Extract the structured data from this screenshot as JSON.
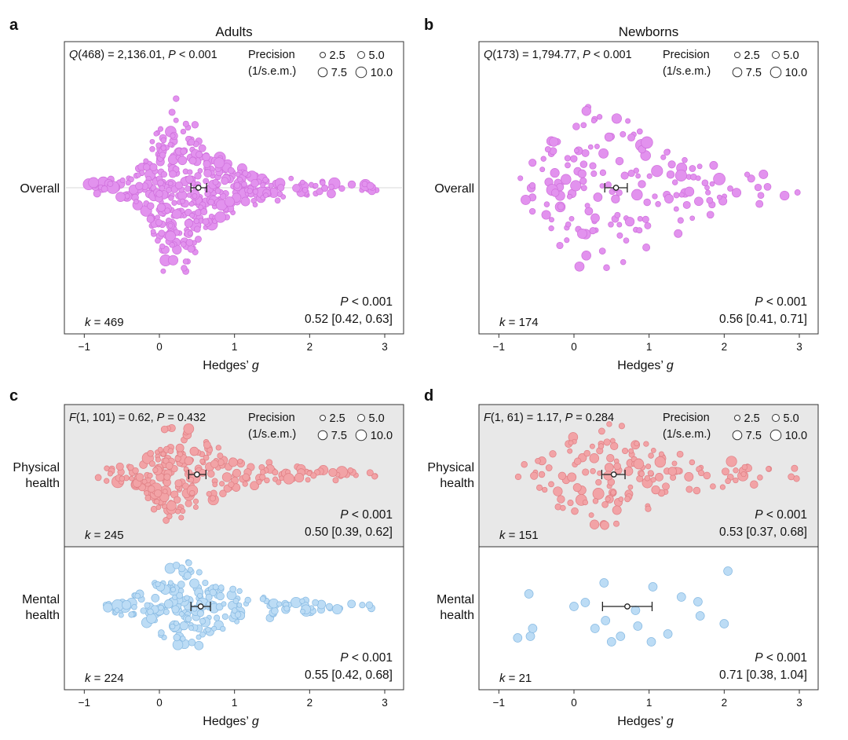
{
  "figure": {
    "panels": [
      {
        "letter": "a",
        "title": "Adults",
        "stat_prefix": "Q",
        "stat_args": "(468) = 2,136.01, ",
        "p_label": "P",
        "p_rest": " < 0.001",
        "precision_legend": {
          "title_line1": "Precision",
          "title_line2": "(1/s.e.m.)",
          "items": [
            "2.5",
            "5.0",
            "7.5",
            "10.0"
          ]
        },
        "xlabel_main": "Hedges’ ",
        "xlabel_italic": "g",
        "x_ticks": [
          "−1",
          "0",
          "1",
          "2",
          "3"
        ],
        "rows": [
          {
            "label_lines": [
              "Overall"
            ],
            "k_label": "k",
            "k_value": " = 469",
            "p_result": " < 0.001",
            "estimate": "0.52 [0.42, 0.63]"
          }
        ]
      },
      {
        "letter": "b",
        "title": "Newborns",
        "stat_prefix": "Q",
        "stat_args": "(173) = 1,794.77, ",
        "p_label": "P",
        "p_rest": " < 0.001",
        "precision_legend": {
          "title_line1": "Precision",
          "title_line2": "(1/s.e.m.)",
          "items": [
            "2.5",
            "5.0",
            "7.5",
            "10.0"
          ]
        },
        "xlabel_main": "Hedges’ ",
        "xlabel_italic": "g",
        "x_ticks": [
          "−1",
          "0",
          "1",
          "2",
          "3"
        ],
        "rows": [
          {
            "label_lines": [
              "Overall"
            ],
            "k_label": "k",
            "k_value": " = 174",
            "p_result": " < 0.001",
            "estimate": "0.56 [0.41, 0.71]"
          }
        ]
      },
      {
        "letter": "c",
        "title": "",
        "stat_prefix": "F",
        "stat_args": "(1, 101) = 0.62, ",
        "p_label": "P",
        "p_rest": " = 0.432",
        "precision_legend": {
          "title_line1": "Precision",
          "title_line2": "(1/s.e.m.)",
          "items": [
            "2.5",
            "5.0",
            "7.5",
            "10.0"
          ]
        },
        "xlabel_main": "Hedges’ ",
        "xlabel_italic": "g",
        "x_ticks": [
          "−1",
          "0",
          "1",
          "2",
          "3"
        ],
        "rows": [
          {
            "label_lines": [
              "Physical",
              "health"
            ],
            "k_label": "k",
            "k_value": " = 245",
            "p_result": " < 0.001",
            "estimate": "0.50 [0.39, 0.62]"
          },
          {
            "label_lines": [
              "Mental",
              "health"
            ],
            "k_label": "k",
            "k_value": " = 224",
            "p_result": " < 0.001",
            "estimate": "0.55 [0.42, 0.68]"
          }
        ]
      },
      {
        "letter": "d",
        "title": "",
        "stat_prefix": "F",
        "stat_args": "(1, 61) = 1.17, ",
        "p_label": "P",
        "p_rest": " = 0.284",
        "precision_legend": {
          "title_line1": "Precision",
          "title_line2": "(1/s.e.m.)",
          "items": [
            "2.5",
            "5.0",
            "7.5",
            "10.0"
          ]
        },
        "xlabel_main": "Hedges’ ",
        "xlabel_italic": "g",
        "x_ticks": [
          "−1",
          "0",
          "1",
          "2",
          "3"
        ],
        "rows": [
          {
            "label_lines": [
              "Physical",
              "health"
            ],
            "k_label": "k",
            "k_value": " = 151",
            "p_result": " < 0.001",
            "estimate": "0.53 [0.37, 0.68]"
          },
          {
            "label_lines": [
              "Mental",
              "health"
            ],
            "k_label": "k",
            "k_value": " = 21",
            "p_result": " < 0.001",
            "estimate": "0.71 [0.38, 1.04]"
          }
        ]
      }
    ]
  },
  "chart_data": [
    {
      "type": "scatter",
      "panel": "a",
      "title": "Adults",
      "xlabel": "Hedges’ g",
      "xlim": [
        -1.1,
        3.25
      ],
      "x_ticks": [
        -1,
        0,
        1,
        2,
        3
      ],
      "series": [
        {
          "name": "Overall",
          "color": "#e292ee",
          "stroke": "#cf6fdc",
          "k": 469,
          "estimate": 0.52,
          "ci": [
            0.42,
            0.63
          ],
          "x_min": -0.95,
          "x_max": 2.9,
          "density_profile": [
            [
              -1.0,
              1
            ],
            [
              -0.5,
              2
            ],
            [
              -0.2,
              4
            ],
            [
              0.0,
              12
            ],
            [
              0.2,
              15
            ],
            [
              0.4,
              13
            ],
            [
              0.6,
              9
            ],
            [
              0.9,
              5
            ],
            [
              1.2,
              3
            ],
            [
              1.6,
              2
            ],
            [
              2.0,
              1.5
            ],
            [
              2.5,
              1
            ],
            [
              3.0,
              0.5
            ]
          ],
          "heterogeneity": "Q(468) = 2,136.01, P < 0.001"
        }
      ],
      "precision_legend": [
        2.5,
        5.0,
        7.5,
        10.0
      ]
    },
    {
      "type": "scatter",
      "panel": "b",
      "title": "Newborns",
      "xlabel": "Hedges’ g",
      "xlim": [
        -1.1,
        3.25
      ],
      "x_ticks": [
        -1,
        0,
        1,
        2,
        3
      ],
      "series": [
        {
          "name": "Overall",
          "color": "#e292ee",
          "stroke": "#cf6fdc",
          "k": 174,
          "estimate": 0.56,
          "ci": [
            0.41,
            0.71
          ],
          "x_min": -0.75,
          "x_max": 3.03,
          "density_profile": [
            [
              -0.8,
              1
            ],
            [
              -0.4,
              2.5
            ],
            [
              0.0,
              4
            ],
            [
              0.3,
              5
            ],
            [
              0.6,
              5
            ],
            [
              0.9,
              4
            ],
            [
              1.2,
              3
            ],
            [
              1.6,
              2
            ],
            [
              2.0,
              1.5
            ],
            [
              2.5,
              1
            ],
            [
              3.0,
              0.5
            ]
          ],
          "heterogeneity": "Q(173) = 1,794.77, P < 0.001"
        }
      ],
      "precision_legend": [
        2.5,
        5.0,
        7.5,
        10.0
      ]
    },
    {
      "type": "scatter",
      "panel": "c",
      "xlabel": "Hedges’ g",
      "xlim": [
        -1.1,
        3.25
      ],
      "x_ticks": [
        -1,
        0,
        1,
        2,
        3
      ],
      "series": [
        {
          "name": "Physical health",
          "color": "#f2a3a6",
          "stroke": "#e07f84",
          "k": 245,
          "estimate": 0.5,
          "ci": [
            0.39,
            0.62
          ],
          "x_min": -0.9,
          "x_max": 2.9,
          "density_profile": [
            [
              -1.0,
              1
            ],
            [
              -0.5,
              2
            ],
            [
              -0.2,
              3
            ],
            [
              0.0,
              8
            ],
            [
              0.2,
              10
            ],
            [
              0.4,
              9
            ],
            [
              0.6,
              7
            ],
            [
              0.9,
              4
            ],
            [
              1.2,
              2.5
            ],
            [
              1.6,
              2
            ],
            [
              2.0,
              1.2
            ],
            [
              2.5,
              1
            ],
            [
              3.0,
              0.5
            ]
          ]
        },
        {
          "name": "Mental health",
          "color": "#bcdcf5",
          "stroke": "#86b9e2",
          "k": 224,
          "estimate": 0.55,
          "ci": [
            0.42,
            0.68
          ],
          "x_min": -0.72,
          "x_max": 2.85,
          "density_profile": [
            [
              -0.8,
              1
            ],
            [
              -0.4,
              2
            ],
            [
              -0.1,
              5
            ],
            [
              0.1,
              8
            ],
            [
              0.3,
              9
            ],
            [
              0.5,
              8
            ],
            [
              0.7,
              6
            ],
            [
              1.0,
              3.5
            ],
            [
              1.3,
              2.5
            ],
            [
              1.7,
              2
            ],
            [
              2.1,
              1.5
            ],
            [
              2.5,
              1
            ],
            [
              3.0,
              0.5
            ]
          ]
        }
      ],
      "moderator_test": "F(1, 101) = 0.62, P = 0.432",
      "precision_legend": [
        2.5,
        5.0,
        7.5,
        10.0
      ]
    },
    {
      "type": "scatter",
      "panel": "d",
      "xlabel": "Hedges’ g",
      "xlim": [
        -1.1,
        3.25
      ],
      "x_ticks": [
        -1,
        0,
        1,
        2,
        3
      ],
      "series": [
        {
          "name": "Physical health",
          "color": "#f2a3a6",
          "stroke": "#e07f84",
          "k": 151,
          "estimate": 0.53,
          "ci": [
            0.37,
            0.68
          ],
          "x_min": -0.75,
          "x_max": 3.03,
          "density_profile": [
            [
              -0.8,
              1
            ],
            [
              -0.4,
              2.5
            ],
            [
              -0.1,
              4
            ],
            [
              0.2,
              5
            ],
            [
              0.5,
              5
            ],
            [
              0.8,
              4
            ],
            [
              1.1,
              3
            ],
            [
              1.5,
              2
            ],
            [
              2.0,
              1.5
            ],
            [
              2.5,
              1
            ],
            [
              3.0,
              0.5
            ]
          ]
        },
        {
          "name": "Mental health",
          "color": "#bcdcf5",
          "stroke": "#86b9e2",
          "k": 21,
          "estimate": 0.71,
          "ci": [
            0.38,
            1.04
          ],
          "points": [
            -0.6,
            -0.58,
            -0.75,
            0.0,
            0.15,
            0.28,
            0.42,
            0.4,
            0.5,
            0.62,
            0.82,
            1.05,
            1.03,
            1.25,
            1.43,
            1.65,
            1.68,
            2.0,
            2.05,
            0.85,
            -0.55
          ]
        }
      ],
      "moderator_test": "F(1, 61) = 1.17, P = 0.284",
      "precision_legend": [
        2.5,
        5.0,
        7.5,
        10.0
      ]
    }
  ]
}
